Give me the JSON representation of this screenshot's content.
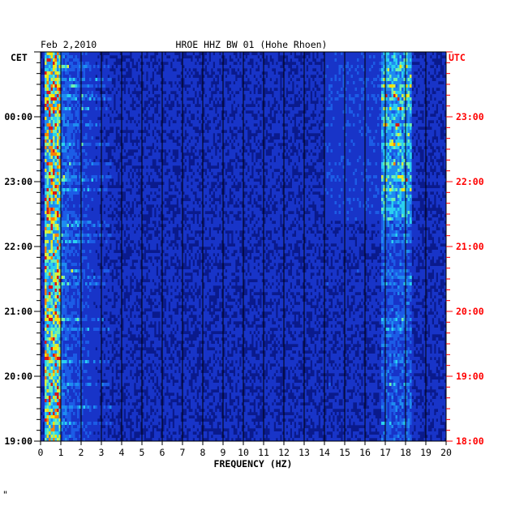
{
  "chart_data": {
    "type": "heatmap",
    "title_left": "Feb 2,2010",
    "title": "HROE HHZ BW 01 (Hohe Rhoen)",
    "left_zone": "CET",
    "right_zone": "UTC",
    "xlabel": "FREQUENCY (HZ)",
    "xlim": [
      0,
      20
    ],
    "x_ticks": [
      "0",
      "1",
      "2",
      "3",
      "4",
      "5",
      "6",
      "7",
      "8",
      "9",
      "10",
      "11",
      "12",
      "13",
      "14",
      "15",
      "16",
      "17",
      "18",
      "19",
      "20"
    ],
    "y_ticks_left": [
      "00:00",
      "23:00",
      "22:00",
      "21:00",
      "20:00",
      "19:00"
    ],
    "y_ticks_right": [
      "23:00",
      "22:00",
      "21:00",
      "20:00",
      "19:00",
      "18:00"
    ],
    "y_tick_hours_before_top": [
      1,
      2,
      3,
      4,
      5,
      6
    ],
    "time_span_hours": 6,
    "energy_bands_hz": [
      {
        "name": "microseism",
        "from": 0.2,
        "to": 1.0,
        "level": "high"
      },
      {
        "name": "band-17-18",
        "from": 16.8,
        "to": 18.3,
        "level": "medium"
      }
    ],
    "colors": {
      "background": "#0a1a8c",
      "grid": "#000000",
      "left_axis": "#000000",
      "right_axis": "#ff0000",
      "low": "#0a1a8c",
      "mid": "#2ad0f0",
      "high": "#ffe000",
      "peak": "#d81818"
    }
  },
  "footer_mark": "\""
}
